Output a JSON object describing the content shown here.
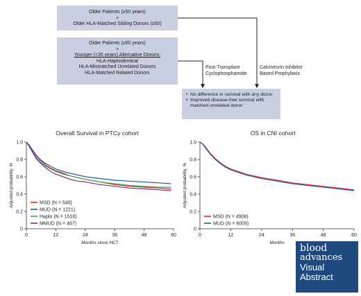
{
  "flow": {
    "box1": {
      "line1": "Older Patients (≥50 years)",
      "line2": "+",
      "line3": "Older HLA-Matched Sibling Donors (≥50)"
    },
    "box2": {
      "line1": "Older Patients (≥50 years)",
      "line2": "+",
      "line3": "Younger (<35 years) Alternative Donors:",
      "line4": "HLA-Haploidentical",
      "line5": "HLA-Mismatched Unrelated Donors",
      "line6": "HLA-Matched Related Donors"
    },
    "arrow_left_label": {
      "line1": "Post-Transplant",
      "line2": "Cyclophosphamide"
    },
    "arrow_right_label": {
      "line1": "Calcineurin Inhibitor",
      "line2": "Based Prophylaxis"
    },
    "outcome": {
      "bullet1": "No difference in survival with any donor",
      "bullet2": "Improved disease-free survival with matched unrelated donor"
    }
  },
  "logo": {
    "line1": "blood",
    "line2": "advances",
    "line3": "Visual",
    "line4": "Abstract"
  },
  "chart_data": [
    {
      "type": "line",
      "title": "Overall Survival in PTCy cohort",
      "xlabel": "Months since HCT",
      "ylabel": "Adjusted probability, %",
      "xlim": [
        0,
        60
      ],
      "ylim": [
        0,
        1.0
      ],
      "xticks": [
        "0",
        "12",
        "24",
        "36",
        "48",
        "60"
      ],
      "yticks": [
        "0",
        "0.2",
        "0.4",
        "0.6",
        "0.8",
        "1.0"
      ],
      "legend_position": "bottom-left",
      "series": [
        {
          "name": "MSD (N = 540)",
          "color": "#e0202a",
          "x": [
            0,
            1,
            2,
            3,
            4,
            6,
            8,
            10,
            12,
            15,
            18,
            21,
            24,
            30,
            36,
            42,
            48,
            54,
            59
          ],
          "y": [
            1.0,
            0.97,
            0.93,
            0.88,
            0.84,
            0.78,
            0.73,
            0.7,
            0.67,
            0.64,
            0.61,
            0.59,
            0.57,
            0.54,
            0.51,
            0.49,
            0.48,
            0.47,
            0.46
          ]
        },
        {
          "name": "MUD (N = 1221)",
          "color": "#1c5aa8",
          "x": [
            0,
            1,
            2,
            3,
            4,
            6,
            8,
            10,
            12,
            15,
            18,
            21,
            24,
            30,
            36,
            42,
            48,
            54,
            59
          ],
          "y": [
            1.0,
            0.97,
            0.93,
            0.89,
            0.85,
            0.79,
            0.75,
            0.72,
            0.69,
            0.66,
            0.64,
            0.62,
            0.6,
            0.58,
            0.56,
            0.55,
            0.54,
            0.53,
            0.52
          ]
        },
        {
          "name": "Haplo (N = 1518)",
          "color": "#3aa845",
          "x": [
            0,
            1,
            2,
            3,
            4,
            6,
            8,
            10,
            12,
            15,
            18,
            21,
            24,
            30,
            36,
            42,
            48,
            54,
            59
          ],
          "y": [
            1.0,
            0.96,
            0.91,
            0.86,
            0.82,
            0.76,
            0.72,
            0.69,
            0.66,
            0.63,
            0.61,
            0.59,
            0.57,
            0.54,
            0.52,
            0.5,
            0.49,
            0.48,
            0.48
          ]
        },
        {
          "name": "MMUD (N = 467)",
          "color": "#7a2a8c",
          "x": [
            0,
            1,
            2,
            3,
            4,
            6,
            8,
            10,
            12,
            15,
            18,
            21,
            24,
            30,
            36,
            42,
            48,
            54,
            59
          ],
          "y": [
            1.0,
            0.96,
            0.91,
            0.86,
            0.81,
            0.75,
            0.7,
            0.66,
            0.63,
            0.6,
            0.57,
            0.55,
            0.54,
            0.51,
            0.49,
            0.47,
            0.46,
            0.45,
            0.44
          ]
        }
      ]
    },
    {
      "type": "line",
      "title": "OS in CNI cohort",
      "xlabel": "Months",
      "ylabel": "Adjusted probability, %",
      "xlim": [
        0,
        60
      ],
      "ylim": [
        0,
        1.0
      ],
      "xticks": [
        "0",
        "12",
        "24",
        "36",
        "48",
        "60"
      ],
      "yticks": [
        "0",
        "0.2",
        "0.4",
        "0.6",
        "0.8",
        "1.0"
      ],
      "legend_position": "bottom-left",
      "series": [
        {
          "name": "MSD (N = 4906)",
          "color": "#e0202a",
          "x": [
            0,
            1,
            2,
            3,
            4,
            6,
            8,
            10,
            12,
            15,
            18,
            21,
            24,
            30,
            36,
            42,
            48,
            54,
            60
          ],
          "y": [
            1.0,
            0.98,
            0.95,
            0.91,
            0.87,
            0.81,
            0.76,
            0.72,
            0.69,
            0.66,
            0.63,
            0.61,
            0.59,
            0.56,
            0.53,
            0.51,
            0.49,
            0.47,
            0.45
          ]
        },
        {
          "name": "MUD (N = 6009)",
          "color": "#1c5aa8",
          "x": [
            0,
            1,
            2,
            3,
            4,
            6,
            8,
            10,
            12,
            15,
            18,
            21,
            24,
            30,
            36,
            42,
            48,
            54,
            60
          ],
          "y": [
            1.0,
            0.98,
            0.94,
            0.9,
            0.86,
            0.8,
            0.75,
            0.71,
            0.68,
            0.65,
            0.62,
            0.6,
            0.58,
            0.55,
            0.52,
            0.5,
            0.48,
            0.46,
            0.44
          ]
        }
      ]
    }
  ]
}
